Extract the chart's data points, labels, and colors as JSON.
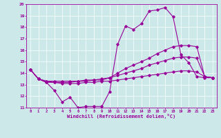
{
  "x": [
    0,
    1,
    2,
    3,
    4,
    5,
    6,
    7,
    8,
    9,
    10,
    11,
    12,
    13,
    14,
    15,
    16,
    17,
    18,
    19,
    20,
    21,
    22,
    23
  ],
  "line1_y": [
    14.3,
    13.5,
    13.2,
    12.5,
    11.5,
    11.9,
    11.0,
    11.1,
    11.1,
    11.1,
    12.4,
    16.5,
    18.1,
    17.8,
    18.3,
    19.4,
    19.5,
    19.7,
    18.9,
    15.6,
    14.9,
    13.7,
    13.6,
    13.6
  ],
  "line2_y": [
    14.3,
    13.5,
    13.2,
    13.2,
    13.2,
    13.2,
    13.3,
    13.3,
    13.4,
    13.4,
    13.6,
    14.0,
    14.4,
    14.7,
    15.0,
    15.3,
    15.7,
    16.0,
    16.3,
    16.4,
    16.4,
    16.3,
    13.7,
    13.6
  ],
  "line3_y": [
    14.3,
    13.5,
    13.3,
    13.3,
    13.3,
    13.3,
    13.3,
    13.4,
    13.4,
    13.5,
    13.6,
    13.8,
    14.0,
    14.2,
    14.4,
    14.7,
    14.9,
    15.1,
    15.3,
    15.4,
    15.4,
    15.3,
    13.7,
    13.6
  ],
  "line4_y": [
    14.3,
    13.5,
    13.3,
    13.2,
    13.1,
    13.1,
    13.1,
    13.2,
    13.2,
    13.3,
    13.3,
    13.4,
    13.5,
    13.6,
    13.7,
    13.8,
    13.9,
    14.0,
    14.1,
    14.2,
    14.2,
    14.1,
    13.7,
    13.6
  ],
  "color": "#990099",
  "bg_color": "#cce8e8",
  "grid_color": "#ffffff",
  "xlabel": "Windchill (Refroidissement éolien,°C)",
  "ylim": [
    11,
    20
  ],
  "xlim": [
    -0.5,
    23.5
  ],
  "yticks": [
    11,
    12,
    13,
    14,
    15,
    16,
    17,
    18,
    19,
    20
  ],
  "xticks": [
    0,
    1,
    2,
    3,
    4,
    5,
    6,
    7,
    8,
    9,
    10,
    11,
    12,
    13,
    14,
    15,
    16,
    17,
    18,
    19,
    20,
    21,
    22,
    23
  ]
}
